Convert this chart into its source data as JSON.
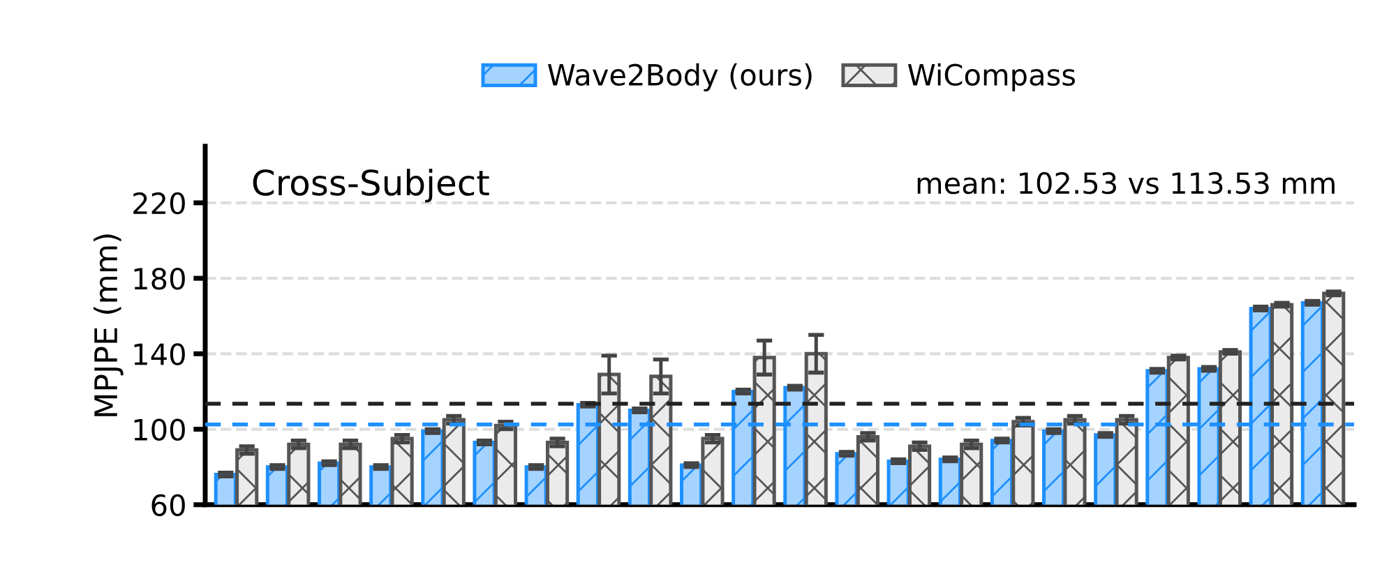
{
  "chart_data": {
    "type": "bar",
    "ylabel": "MPJPE (mm)",
    "categories": [
      null,
      null,
      null,
      null,
      null,
      null,
      null,
      null,
      null,
      null,
      null,
      null,
      null,
      null,
      null,
      null,
      null,
      null,
      null,
      null,
      null,
      null
    ],
    "series": [
      {
        "name": "Wave2Body (ours)",
        "color": "#1e90ff",
        "values": [
          76,
          80,
          82,
          80,
          99,
          93,
          80,
          113,
          110,
          81,
          120,
          122,
          87,
          83,
          84,
          94,
          99,
          97,
          131,
          132,
          164,
          167
        ],
        "errors": [
          1,
          1,
          1,
          1,
          1,
          1,
          1,
          1,
          1,
          1,
          1,
          1,
          1,
          1,
          1,
          1,
          1,
          1,
          1,
          1,
          1,
          1
        ]
      },
      {
        "name": "WiCompass",
        "color": "#555555",
        "values": [
          89,
          92,
          92,
          95,
          105,
          102,
          93,
          129,
          128,
          95,
          138,
          140,
          96,
          91,
          92,
          104,
          105,
          105,
          138,
          141,
          166,
          172
        ],
        "errors": [
          2,
          2,
          2,
          2,
          2,
          2,
          2,
          10,
          9,
          2,
          9,
          10,
          2,
          2,
          2,
          2,
          2,
          2,
          1,
          1,
          1,
          1
        ]
      }
    ],
    "ylim": [
      60,
      250
    ],
    "yticks": [
      60,
      100,
      140,
      180,
      220
    ],
    "grid": "y",
    "legend": "top",
    "tick_labels": "y",
    "ref_lines": [
      {
        "axis": "y",
        "value": 102.53,
        "color": "#1e90ff",
        "line_style": "dashed"
      },
      {
        "axis": "y",
        "value": 113.53,
        "color": "#222222",
        "line_style": "dashed"
      }
    ],
    "annotations": [
      "Cross-Subject",
      "mean: 102.53 vs 113.53 mm"
    ]
  }
}
